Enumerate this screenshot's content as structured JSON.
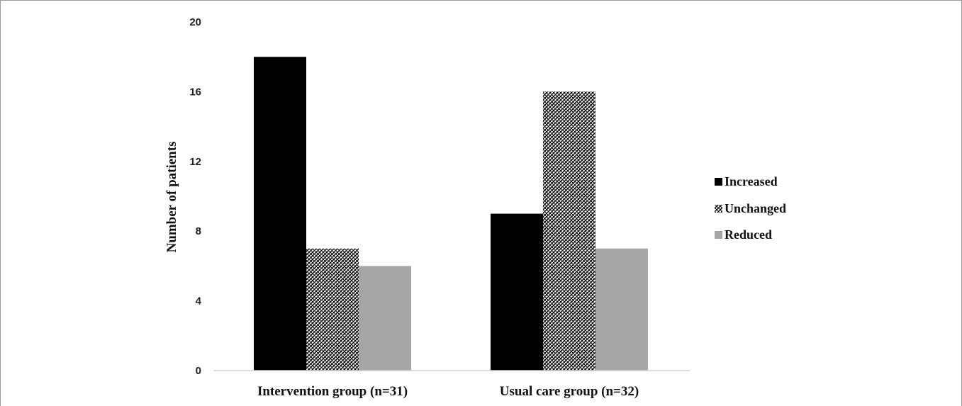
{
  "chart_data": {
    "type": "bar",
    "title": "",
    "xlabel": "",
    "ylabel": "Number of patients",
    "ylim": [
      0,
      20
    ],
    "yticks": [
      0,
      4,
      8,
      12,
      16,
      20
    ],
    "grid": false,
    "legend_position": "right",
    "categories": [
      "Intervention group (n=31)",
      "Usual care group (n=32)"
    ],
    "series": [
      {
        "name": "Increased",
        "values": [
          18,
          9
        ],
        "color": "#000000",
        "pattern": "solid"
      },
      {
        "name": "Unchanged",
        "values": [
          7,
          16
        ],
        "color": "#000000",
        "pattern": "cross-hatch"
      },
      {
        "name": "Reduced",
        "values": [
          6,
          7
        ],
        "color": "#a6a6a6",
        "pattern": "solid"
      }
    ]
  }
}
